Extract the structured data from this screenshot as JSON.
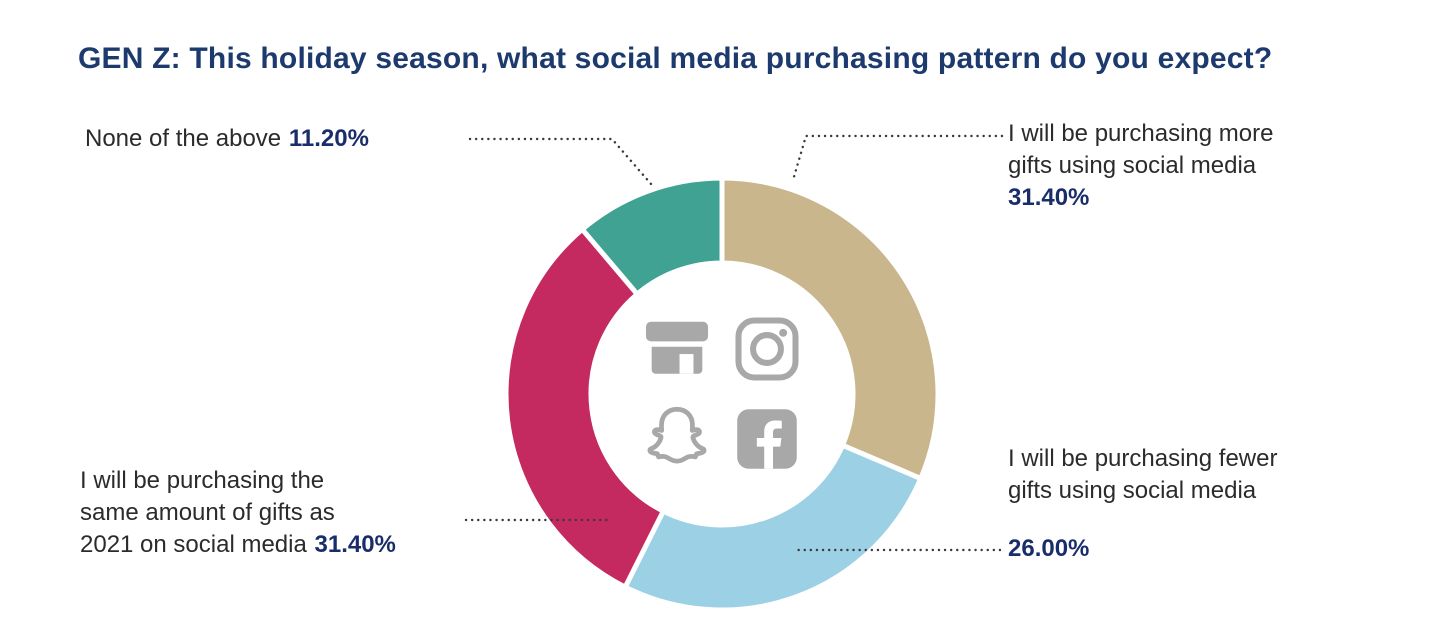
{
  "title": "GEN Z: This holiday season, what social media purchasing pattern do you expect?",
  "colors": {
    "title": "#1d3a6e",
    "percent": "#1a2d6b",
    "text": "#2b2b2b",
    "leader": "#3a3a3a",
    "icon_gray": "#a8a8a8",
    "background": "#ffffff"
  },
  "chart_data": {
    "type": "pie",
    "donut": true,
    "start_angle_deg": 0,
    "direction": "clockwise",
    "title": "GEN Z: This holiday season, what social media purchasing pattern do you expect?",
    "slices": [
      {
        "label": "I will be purchasing more gifts using social media",
        "value": 31.4,
        "display": "31.40%",
        "color": "#c9b68c"
      },
      {
        "label": "I will be purchasing fewer gifts using social media",
        "value": 26.0,
        "display": "26.00%",
        "color": "#9cd0e5"
      },
      {
        "label": "I will be purchasing the same amount of gifts as 2021 on social media",
        "value": 31.4,
        "display": "31.40%",
        "color": "#c42a60"
      },
      {
        "label": "None of the above",
        "value": 11.2,
        "display": "11.20%",
        "color": "#3fa292"
      }
    ],
    "center_icons": [
      "storefront-icon",
      "instagram-icon",
      "snapchat-icon",
      "facebook-icon"
    ],
    "legend_position": "callout-labels",
    "grid": false
  },
  "labels": {
    "none": {
      "text": "None of the above",
      "pct": "11.20%"
    },
    "more": {
      "line1": "I will be purchasing more",
      "line2": "gifts using social media",
      "pct": "31.40%"
    },
    "same": {
      "line1": "I will be purchasing the",
      "line2": "same amount of gifts as",
      "line3": "2021 on social media",
      "pct": "31.40%"
    },
    "fewer": {
      "line1": "I will be purchasing fewer",
      "line2": "gifts using social media",
      "pct": "26.00%"
    }
  }
}
